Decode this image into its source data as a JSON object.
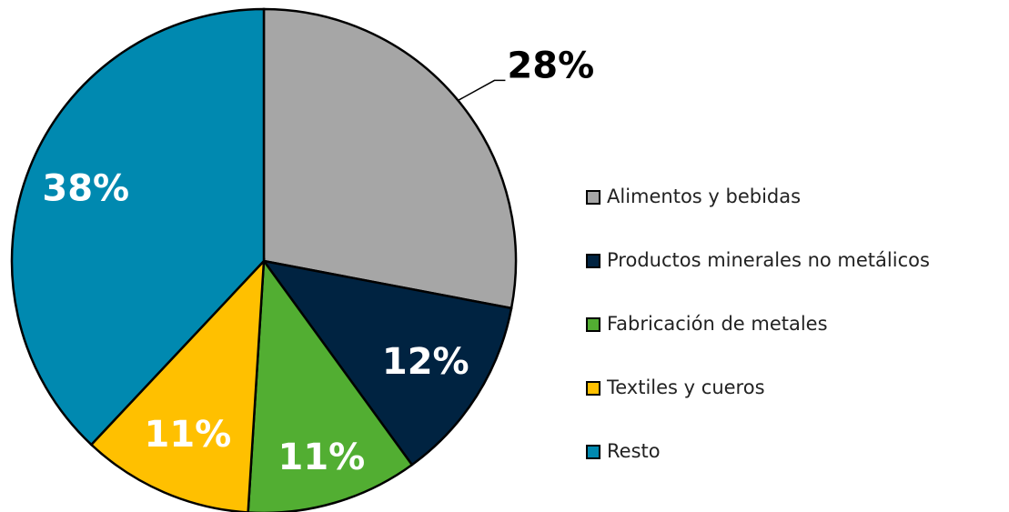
{
  "chart_data": {
    "type": "pie",
    "categories": [
      "Alimentos y bebidas",
      "Productos minerales no metálicos",
      "Fabricación de metales",
      "Textiles y cueros",
      "Resto"
    ],
    "values": [
      28,
      12,
      11,
      11,
      38
    ],
    "value_labels": [
      "28%",
      "12%",
      "11%",
      "11%",
      "38%"
    ],
    "colors": [
      "#a6a6a6",
      "#002341",
      "#52ae32",
      "#ffc000",
      "#0089b0"
    ],
    "legend": "right"
  }
}
